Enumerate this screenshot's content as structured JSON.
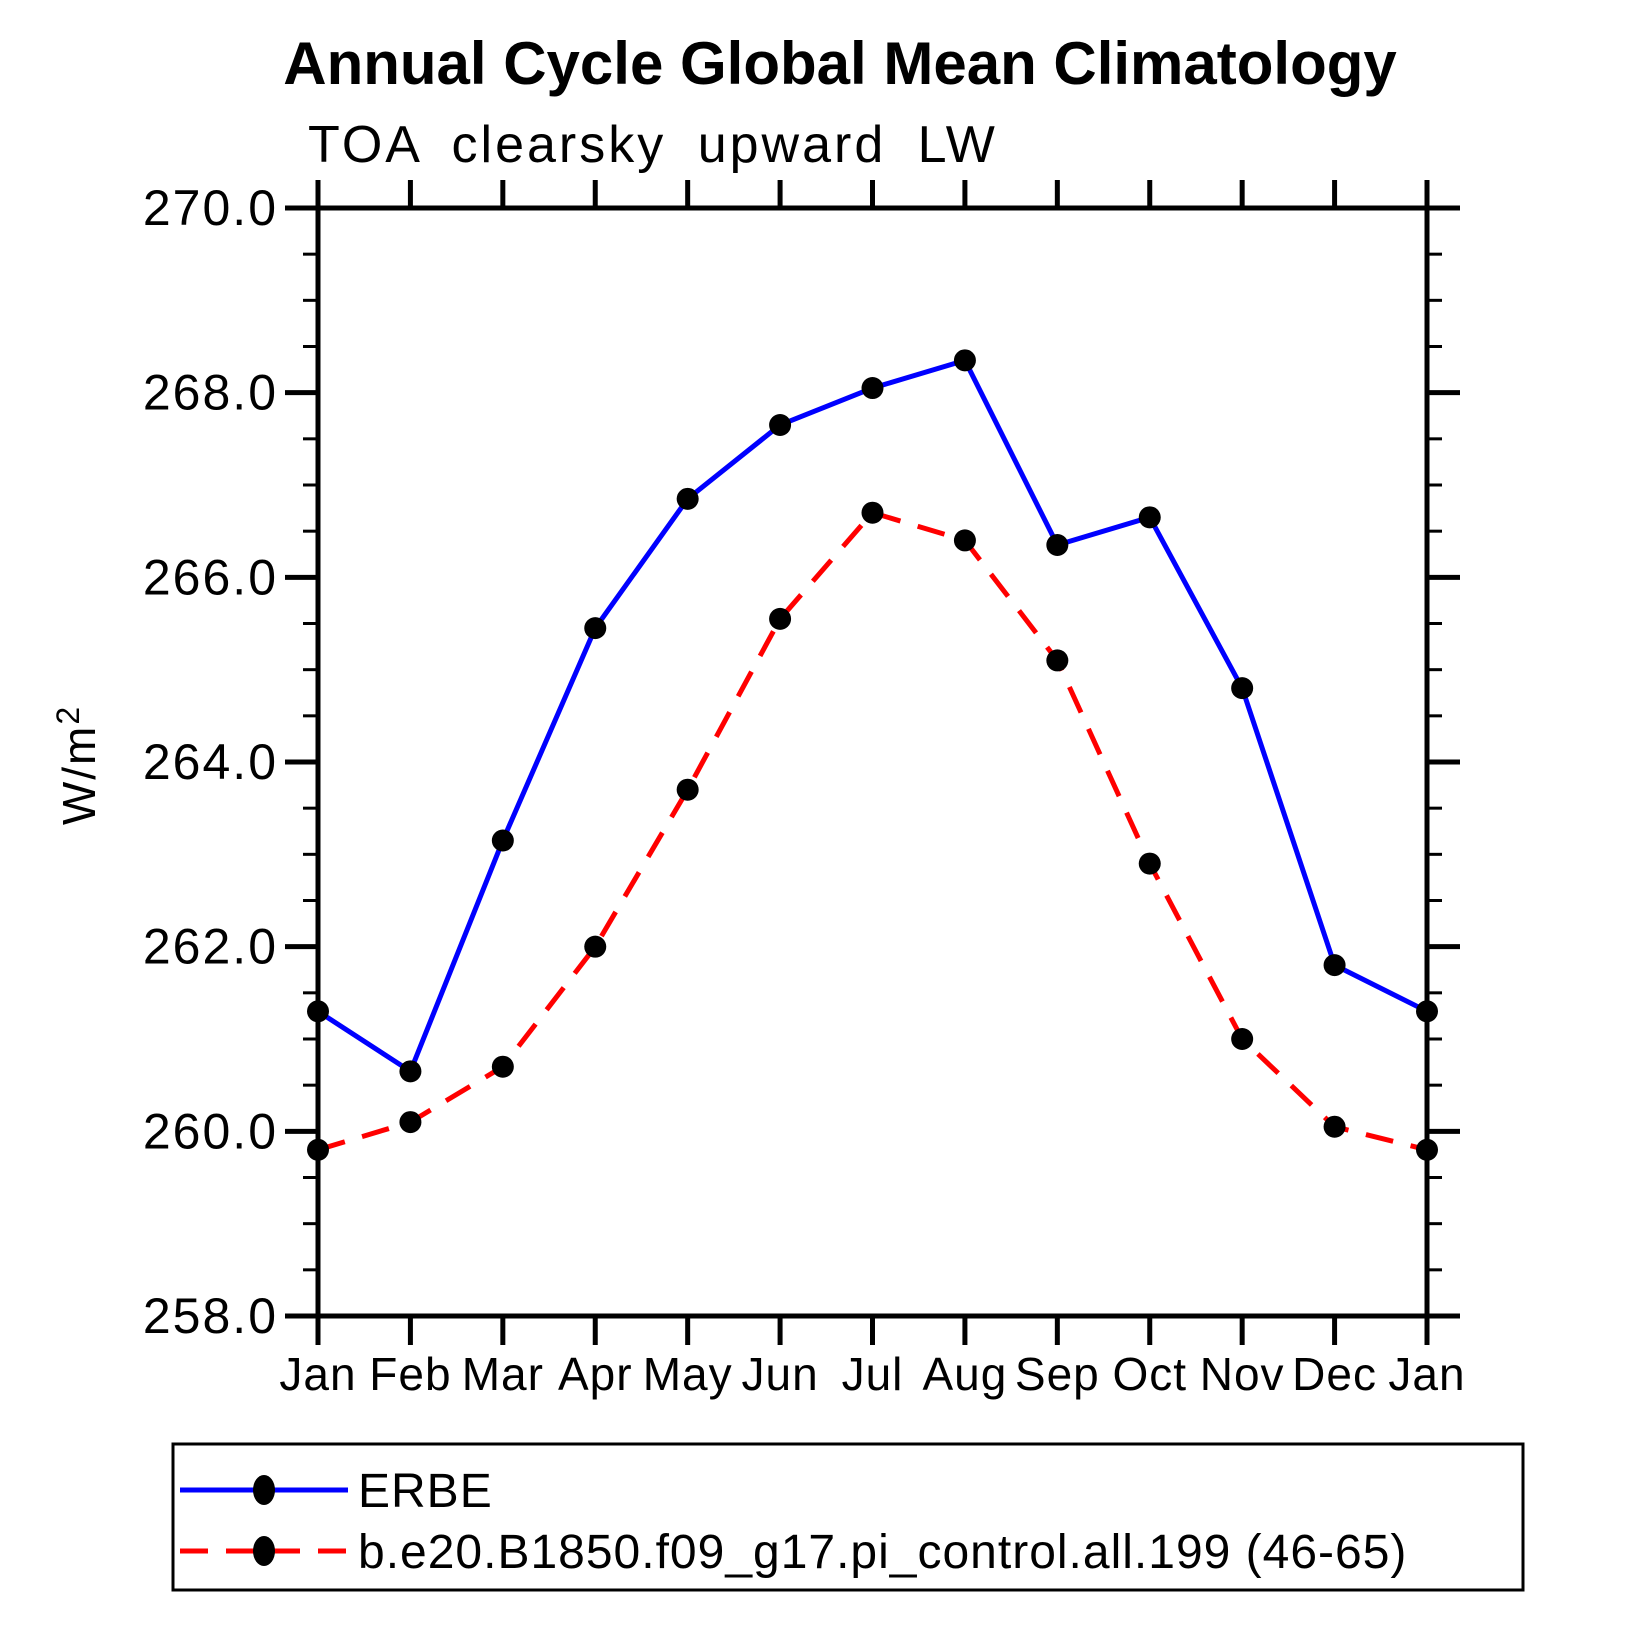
{
  "title": "Annual Cycle Global Mean Climatology",
  "subtitle": "TOA clearsky upward LW",
  "y_axis_label_base": "W/m",
  "y_axis_label_exp": "2",
  "colors": {
    "axis": "#000000",
    "marker": "#000000",
    "erbe_line": "#0000ff",
    "model_line": "#ff0000"
  },
  "chart_data": {
    "type": "line",
    "title": "Annual Cycle Global Mean Climatology",
    "subtitle": "TOA clearsky upward LW",
    "ylabel": "W/m^2",
    "ylim": [
      258.0,
      270.0
    ],
    "y_major_step": 2.0,
    "y_minor_step": 0.5,
    "y_tick_labels": [
      "258.0",
      "260.0",
      "262.0",
      "264.0",
      "266.0",
      "268.0",
      "270.0"
    ],
    "x_categories": [
      "Jan",
      "Feb",
      "Mar",
      "Apr",
      "May",
      "Jun",
      "Jul",
      "Aug",
      "Sep",
      "Oct",
      "Nov",
      "Dec",
      "Jan"
    ],
    "grid": false,
    "legend_position": "bottom",
    "series": [
      {
        "key": "erbe",
        "name": "ERBE",
        "color": "#0000ff",
        "style": "solid",
        "marker": "filled-circle",
        "values": [
          261.3,
          260.65,
          263.15,
          265.45,
          266.85,
          267.65,
          268.05,
          268.35,
          266.35,
          266.65,
          264.8,
          261.8,
          261.3
        ]
      },
      {
        "key": "model",
        "name": "b.e20.B1850.f09_g17.pi_control.all.199 (46-65)",
        "color": "#ff0000",
        "style": "dashed",
        "marker": "filled-circle",
        "values": [
          259.8,
          260.1,
          260.7,
          262.0,
          263.7,
          265.55,
          266.7,
          266.4,
          265.1,
          262.9,
          261.0,
          260.05,
          259.8
        ]
      }
    ]
  }
}
